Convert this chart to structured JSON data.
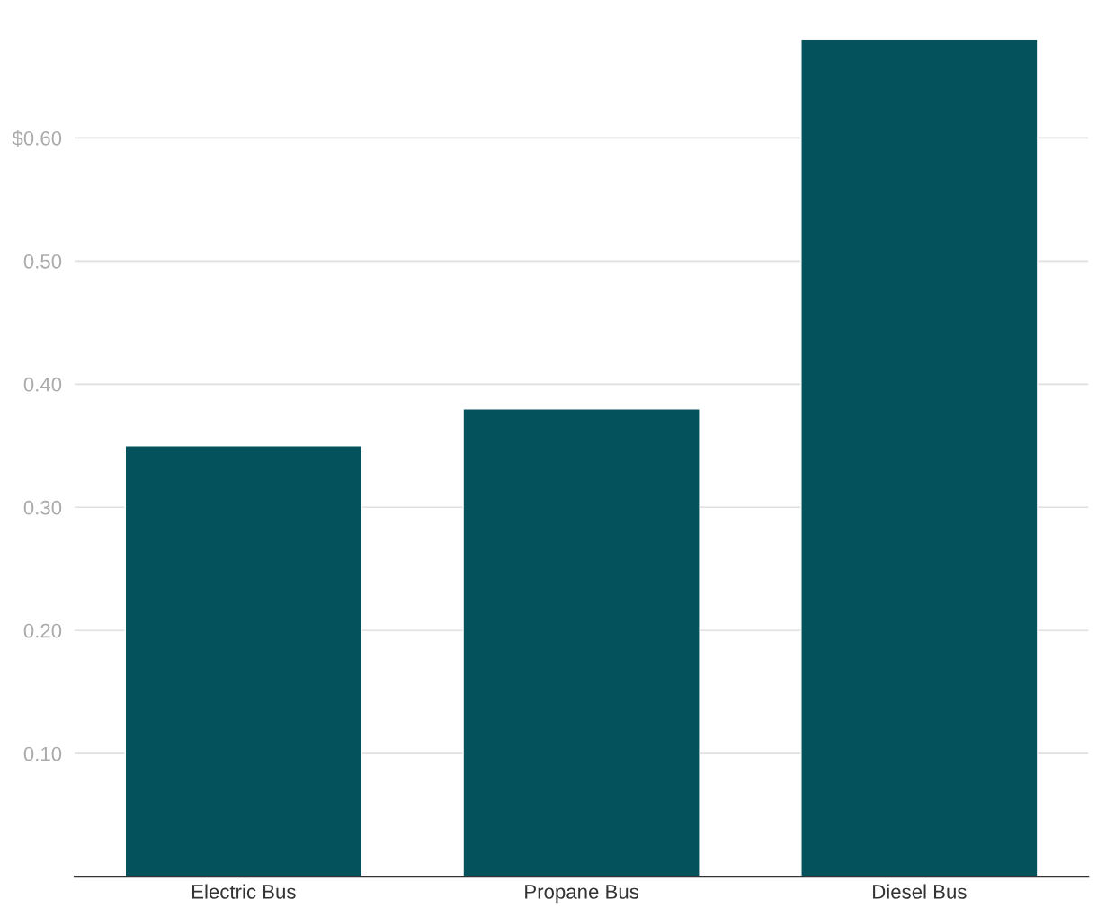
{
  "chart_data": {
    "type": "bar",
    "categories": [
      "Electric Bus",
      "Propane Bus",
      "Diesel Bus"
    ],
    "values": [
      0.35,
      0.38,
      0.68
    ],
    "color": "#04525c",
    "ylim": [
      0,
      0.68
    ],
    "yticks": [
      {
        "value": 0.1,
        "label": "0.10"
      },
      {
        "value": 0.2,
        "label": "0.20"
      },
      {
        "value": 0.3,
        "label": "0.30"
      },
      {
        "value": 0.4,
        "label": "0.40"
      },
      {
        "value": 0.5,
        "label": "0.50"
      },
      {
        "value": 0.6,
        "label": "$0.60"
      }
    ],
    "grid": "y"
  }
}
